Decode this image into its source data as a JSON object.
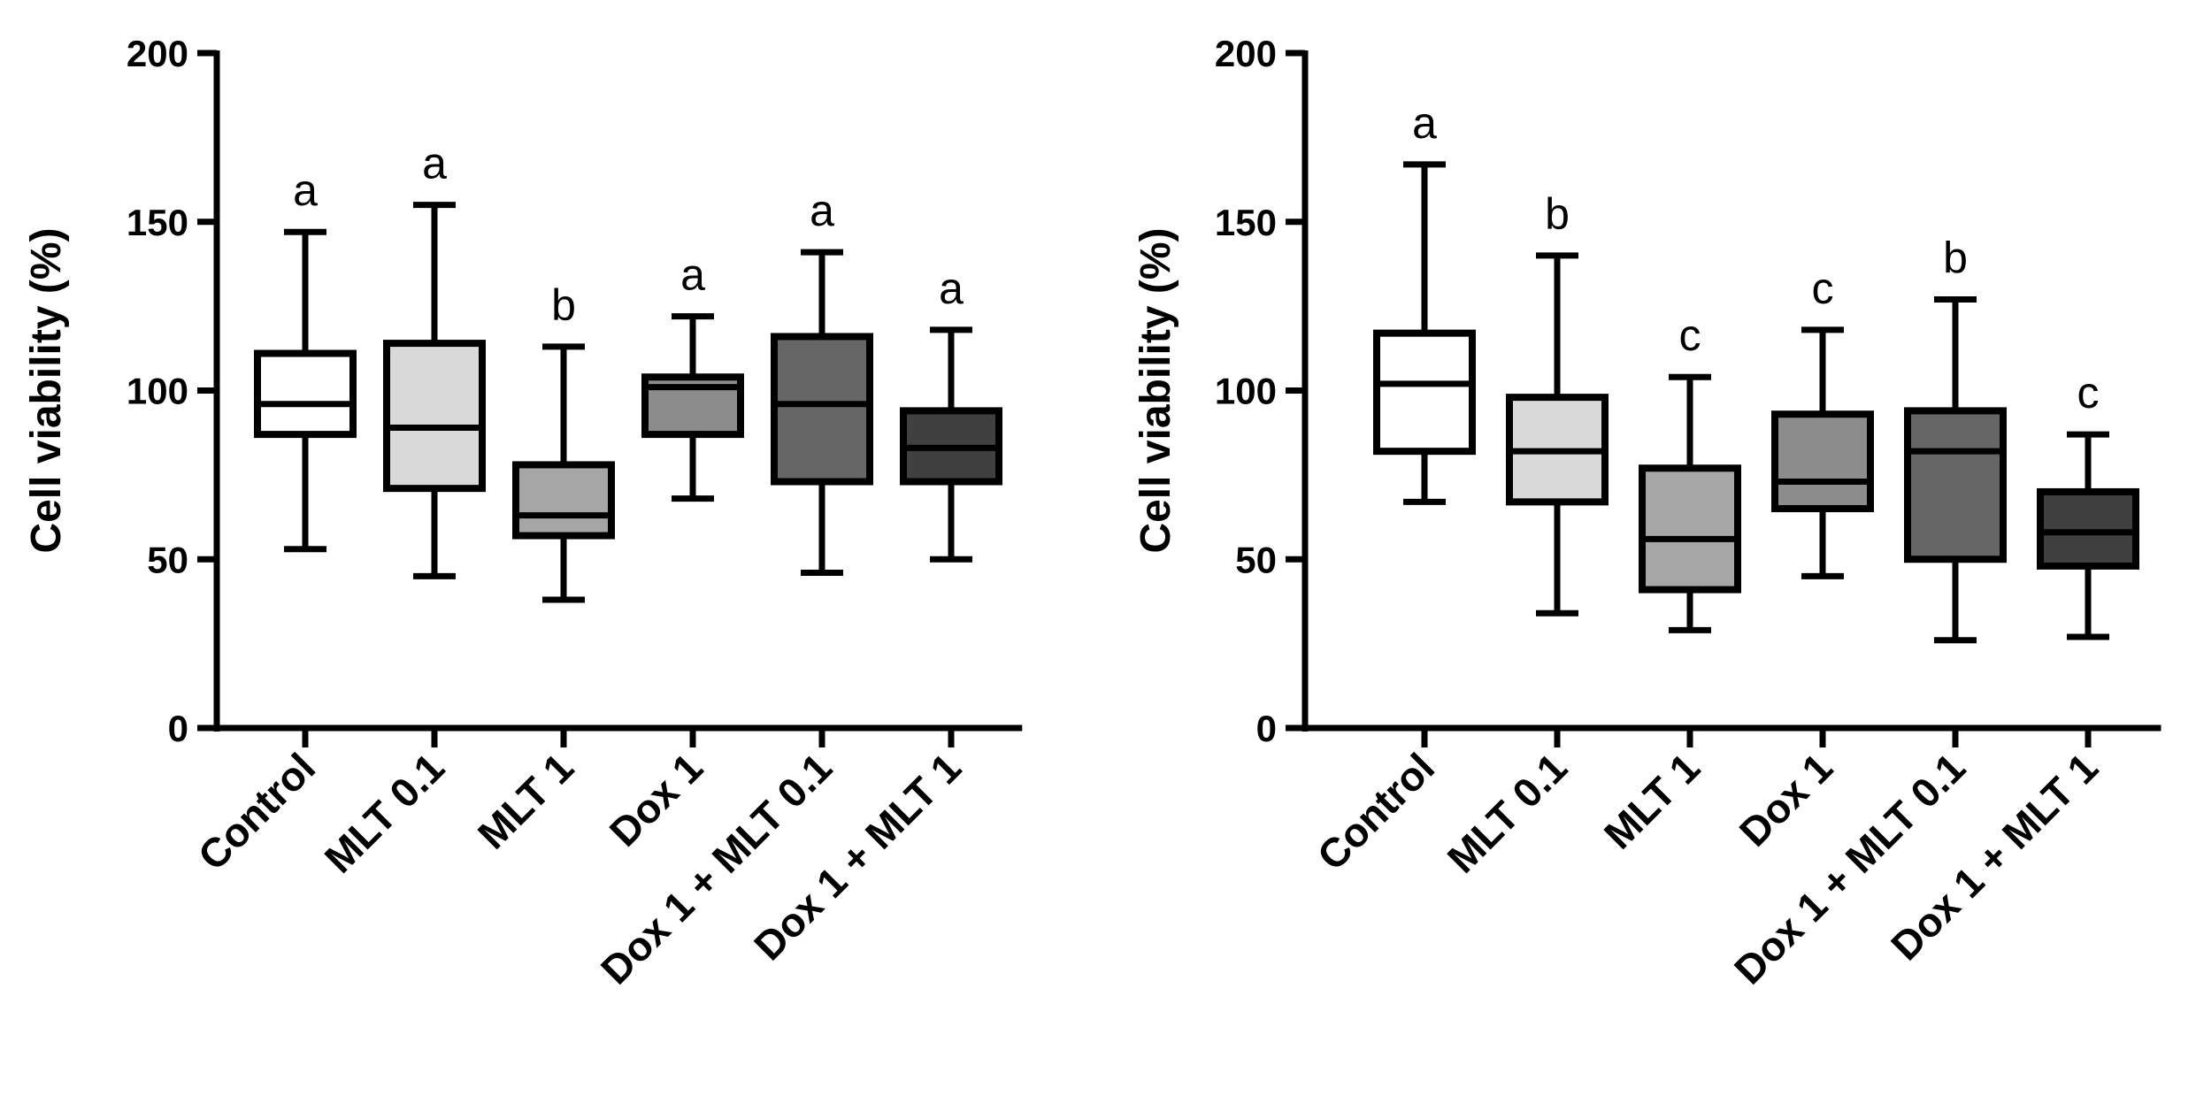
{
  "chart_data": [
    {
      "type": "box",
      "ylabel": "Cell viability (%)",
      "ylim": [
        0,
        200
      ],
      "yticks": [
        "0",
        "50",
        "100",
        "150",
        "200"
      ],
      "categories": [
        "Control",
        "MLT 0.1",
        "MLT 1",
        "Dox 1",
        "Dox 1 + MLT 0.1",
        "Dox 1 + MLT 1"
      ],
      "boxes": [
        {
          "min": 53,
          "q1": 87,
          "median": 96,
          "q3": 111,
          "max": 147,
          "fill": "#ffffff",
          "letter": "a"
        },
        {
          "min": 45,
          "q1": 71,
          "median": 89,
          "q3": 114,
          "max": 155,
          "fill": "#d9d9d9",
          "letter": "a"
        },
        {
          "min": 38,
          "q1": 57,
          "median": 63,
          "q3": 78,
          "max": 113,
          "fill": "#a6a6a6",
          "letter": "b"
        },
        {
          "min": 68,
          "q1": 87,
          "median": 101,
          "q3": 104,
          "max": 122,
          "fill": "#8c8c8c",
          "letter": "a"
        },
        {
          "min": 46,
          "q1": 73,
          "median": 96,
          "q3": 116,
          "max": 141,
          "fill": "#666666",
          "letter": "a"
        },
        {
          "min": 50,
          "q1": 73,
          "median": 83,
          "q3": 94,
          "max": 118,
          "fill": "#404040",
          "letter": "a"
        }
      ]
    },
    {
      "type": "box",
      "ylabel": "Cell viability (%)",
      "ylim": [
        0,
        200
      ],
      "yticks": [
        "0",
        "50",
        "100",
        "150",
        "200"
      ],
      "categories": [
        "Control",
        "MLT 0.1",
        "MLT 1",
        "Dox 1",
        "Dox 1 + MLT 0.1",
        "Dox 1 + MLT 1"
      ],
      "boxes": [
        {
          "min": 67,
          "q1": 82,
          "median": 102,
          "q3": 117,
          "max": 167,
          "fill": "#ffffff",
          "letter": "a"
        },
        {
          "min": 34,
          "q1": 67,
          "median": 82,
          "q3": 98,
          "max": 140,
          "fill": "#d9d9d9",
          "letter": "b"
        },
        {
          "min": 29,
          "q1": 41,
          "median": 56,
          "q3": 77,
          "max": 104,
          "fill": "#a6a6a6",
          "letter": "c"
        },
        {
          "min": 45,
          "q1": 65,
          "median": 73,
          "q3": 93,
          "max": 118,
          "fill": "#8c8c8c",
          "letter": "c"
        },
        {
          "min": 26,
          "q1": 50,
          "median": 82,
          "q3": 94,
          "max": 127,
          "fill": "#666666",
          "letter": "b"
        },
        {
          "min": 27,
          "q1": 48,
          "median": 58,
          "q3": 70,
          "max": 87,
          "fill": "#404040",
          "letter": "c"
        }
      ]
    }
  ]
}
